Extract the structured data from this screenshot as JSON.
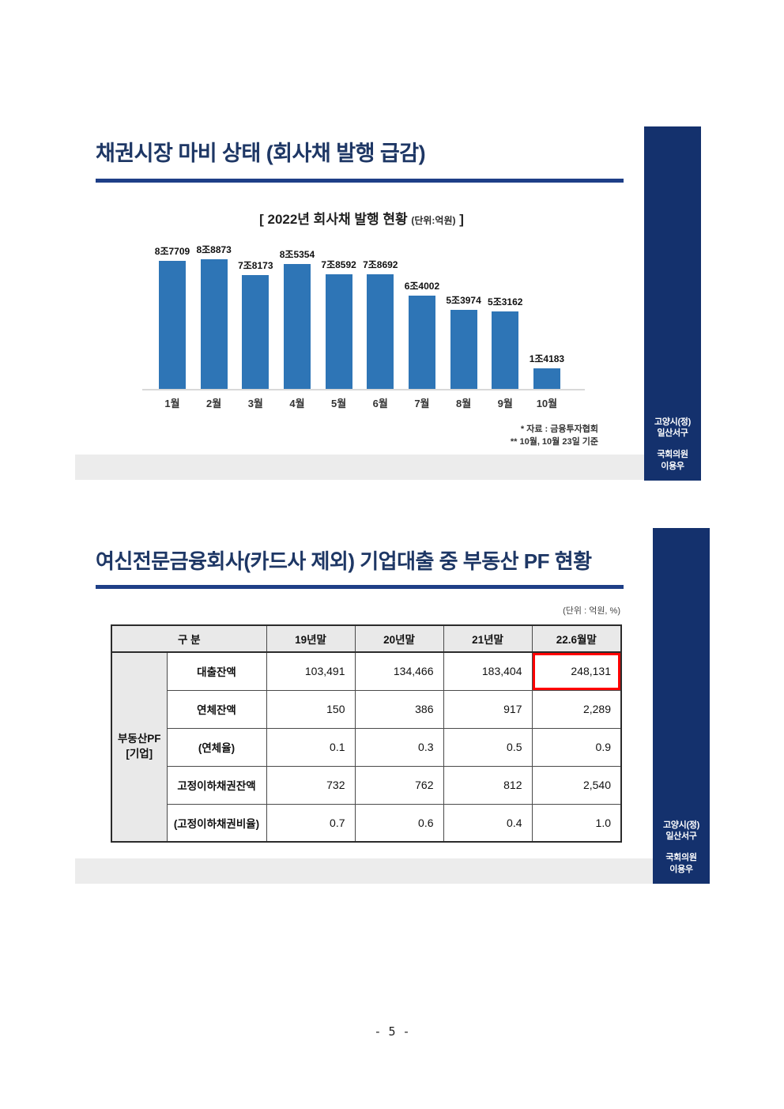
{
  "colors": {
    "navy_banner": "#14316d",
    "title_navy": "#1e3765",
    "rule_navy": "#1e3f87",
    "bar_blue": "#2e75b6",
    "strip_gray": "#ececec",
    "highlight_red": "#ff0000"
  },
  "sidebar": {
    "district": "고양시(정)\n일산서구",
    "member": "국회의원\n이용우"
  },
  "slide1": {
    "title": "채권시장 마비 상태 (회사채 발행 급감)",
    "chart_title_main": "[ 2022년 회사채 발행 현황 ",
    "chart_title_unit": "(단위:억원)",
    "chart_title_close": " ]",
    "footnote1": "* 자료 : 금융투자협회",
    "footnote2": "** 10월, 10월 23일 기준"
  },
  "chart_data": {
    "type": "bar",
    "title": "2022년 회사채 발행 현황",
    "unit": "억원",
    "categories": [
      "1월",
      "2월",
      "3월",
      "4월",
      "5월",
      "6월",
      "7월",
      "8월",
      "9월",
      "10월"
    ],
    "values": [
      87709,
      88873,
      78173,
      85354,
      78592,
      78692,
      64002,
      53974,
      53162,
      14183
    ],
    "point_labels": [
      "8조7709",
      "8조8873",
      "7조8173",
      "8조5354",
      "7조8592",
      "7조8692",
      "6조4002",
      "5조3974",
      "5조3162",
      "1조4183"
    ],
    "bar_color": "#2e75b6",
    "ylim": [
      0,
      90000
    ],
    "grid": false,
    "legend_position": "none",
    "source_note": "자료 : 금융투자협회, 10월은 10월 23일 기준"
  },
  "slide2": {
    "title": "여신전문금융회사(카드사 제외) 기업대출 중 부동산 PF 현황",
    "unit_label": "(단위 : 억원, %)",
    "table": {
      "header": [
        "구 분",
        "19년말",
        "20년말",
        "21년말",
        "22.6월말"
      ],
      "row_group_label": "부동산PF\n[기업]",
      "rows": [
        {
          "label": "대출잔액",
          "values": [
            "103,491",
            "134,466",
            "183,404",
            "248,131"
          ],
          "highlight_last": true
        },
        {
          "label": "연체잔액",
          "values": [
            "150",
            "386",
            "917",
            "2,289"
          ],
          "highlight_last": false
        },
        {
          "label": "(연체율)",
          "values": [
            "0.1",
            "0.3",
            "0.5",
            "0.9"
          ],
          "highlight_last": false
        },
        {
          "label": "고정이하채권잔액",
          "values": [
            "732",
            "762",
            "812",
            "2,540"
          ],
          "highlight_last": false
        },
        {
          "label": "(고정이하채권비율)",
          "values": [
            "0.7",
            "0.6",
            "0.4",
            "1.0"
          ],
          "highlight_last": false
        }
      ]
    }
  },
  "footer": {
    "page_number": "- 5 -"
  }
}
